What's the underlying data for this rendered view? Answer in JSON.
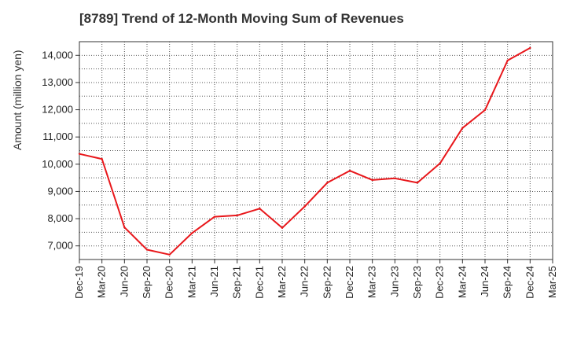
{
  "chart_data": {
    "type": "line",
    "title": "[8789]  Trend of 12-Month Moving Sum of Revenues",
    "ylabel": "Amount (million yen)",
    "xlabel": "",
    "categories": [
      "Dec-19",
      "Mar-20",
      "Jun-20",
      "Sep-20",
      "Dec-20",
      "Mar-21",
      "Jun-21",
      "Sep-21",
      "Dec-21",
      "Mar-22",
      "Jun-22",
      "Sep-22",
      "Dec-22",
      "Mar-23",
      "Jun-23",
      "Sep-23",
      "Dec-23",
      "Mar-24",
      "Jun-24",
      "Sep-24",
      "Dec-24",
      "Mar-25"
    ],
    "series": [
      {
        "values": [
          10380,
          10190,
          7680,
          6860,
          6680,
          7470,
          8070,
          8120,
          8370,
          7660,
          8450,
          9320,
          9760,
          9420,
          9480,
          9320,
          10030,
          11330,
          11990,
          13810,
          14270,
          null
        ],
        "color": "#e8171b"
      }
    ],
    "ylim": [
      6500,
      14500
    ],
    "yticks": [
      7000,
      8000,
      9000,
      10000,
      11000,
      12000,
      13000,
      14000
    ],
    "ytick_labels": [
      "7,000",
      "8,000",
      "9,000",
      "10,000",
      "11,000",
      "12,000",
      "13,000",
      "14,000"
    ],
    "grid": true,
    "grid_style": "dotted",
    "grid_color": "#555555"
  }
}
